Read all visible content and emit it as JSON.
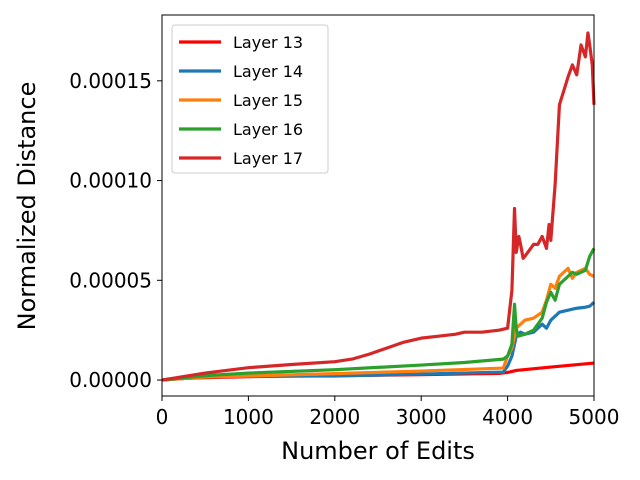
{
  "chart_data": {
    "type": "line",
    "xlabel": "Number of Edits",
    "ylabel": "Normalized Distance",
    "xlim": [
      0,
      5000
    ],
    "ylim": [
      -8e-06,
      0.000183
    ],
    "x_ticks": [
      0,
      1000,
      2000,
      3000,
      4000,
      5000
    ],
    "x_tick_labels": [
      "0",
      "1000",
      "2000",
      "3000",
      "4000",
      "5000"
    ],
    "y_ticks": [
      0,
      5e-05,
      0.0001,
      0.00015
    ],
    "y_tick_labels": [
      "0.00000",
      "0.00005",
      "0.00010",
      "0.00015"
    ],
    "grid": false,
    "legend_position": "top-left",
    "series": [
      {
        "name": "Layer 13",
        "color": "#ff0000",
        "x": [
          0,
          100,
          500,
          1000,
          2000,
          3000,
          3900,
          4000,
          4100,
          4500,
          5000
        ],
        "y": [
          0,
          6e-07,
          1.2e-06,
          1.7e-06,
          2.2e-06,
          2.7e-06,
          3.3e-06,
          3.8e-06,
          4.8e-06,
          6.5e-06,
          8.5e-06
        ]
      },
      {
        "name": "Layer 14",
        "color": "#1f77b4",
        "x": [
          0,
          500,
          1000,
          2000,
          3000,
          3950,
          4000,
          4050,
          4100,
          4150,
          4200,
          4300,
          4350,
          4400,
          4450,
          4500,
          4600,
          4700,
          4800,
          4900,
          4950,
          5000
        ],
        "y": [
          0,
          1.5e-06,
          2e-06,
          2e-06,
          3e-06,
          4e-06,
          7e-06,
          1.2e-05,
          2.2e-05,
          2.4e-05,
          2.3e-05,
          2.4e-05,
          2.6e-05,
          2.8e-05,
          2.6e-05,
          3e-05,
          3.4e-05,
          3.5e-05,
          3.6e-05,
          3.65e-05,
          3.7e-05,
          3.9e-05
        ]
      },
      {
        "name": "Layer 15",
        "color": "#ff7f0e",
        "x": [
          0,
          500,
          1000,
          2000,
          3000,
          3950,
          4000,
          4050,
          4100,
          4150,
          4200,
          4300,
          4400,
          4450,
          4500,
          4550,
          4600,
          4700,
          4750,
          4800,
          4900,
          4950,
          5000
        ],
        "y": [
          0,
          1.5e-06,
          2e-06,
          3.2e-06,
          4.5e-06,
          6e-06,
          1.2e-05,
          1.6e-05,
          2.6e-05,
          2.8e-05,
          3e-05,
          3.1e-05,
          3.4e-05,
          4e-05,
          4.8e-05,
          4.6e-05,
          5.2e-05,
          5.6e-05,
          5.1e-05,
          5.4e-05,
          5.6e-05,
          5.3e-05,
          5.2e-05
        ]
      },
      {
        "name": "Layer 16",
        "color": "#2ca02c",
        "x": [
          0,
          500,
          1000,
          2000,
          3000,
          3500,
          3950,
          4000,
          4050,
          4080,
          4100,
          4120,
          4200,
          4300,
          4400,
          4450,
          4500,
          4550,
          4600,
          4700,
          4750,
          4800,
          4900,
          4950,
          5000
        ],
        "y": [
          0,
          2.2e-06,
          3.5e-06,
          5.2e-06,
          7.5e-06,
          8.8e-06,
          1.05e-05,
          1.2e-05,
          1.8e-05,
          3.8e-05,
          2.6e-05,
          2.2e-05,
          2.3e-05,
          2.5e-05,
          3.1e-05,
          3.9e-05,
          4.4e-05,
          4e-05,
          4.8e-05,
          5.2e-05,
          5.4e-05,
          5.3e-05,
          5.5e-05,
          6.2e-05,
          6.6e-05
        ]
      },
      {
        "name": "Layer 17",
        "color": "#d62728",
        "x": [
          0,
          500,
          1000,
          1500,
          2000,
          2200,
          2400,
          2600,
          2800,
          3000,
          3200,
          3400,
          3500,
          3700,
          3900,
          4000,
          4050,
          4080,
          4100,
          4130,
          4150,
          4180,
          4200,
          4250,
          4300,
          4350,
          4400,
          4450,
          4480,
          4500,
          4550,
          4600,
          4650,
          4700,
          4750,
          4800,
          4850,
          4900,
          4930,
          4950,
          4980,
          5000
        ],
        "y": [
          0,
          3.5e-06,
          6.2e-06,
          7.8e-06,
          9.2e-06,
          1.05e-05,
          1.3e-05,
          1.6e-05,
          1.9e-05,
          2.1e-05,
          2.2e-05,
          2.3e-05,
          2.4e-05,
          2.4e-05,
          2.5e-05,
          2.6e-05,
          4.5e-05,
          8.6e-05,
          6.4e-05,
          7.2e-05,
          6.8e-05,
          6.1e-05,
          6.2e-05,
          6.5e-05,
          6.8e-05,
          6.8e-05,
          7.2e-05,
          6.6e-05,
          7.8e-05,
          7e-05,
          9.8e-05,
          0.000138,
          0.000145,
          0.000152,
          0.000158,
          0.000153,
          0.000168,
          0.000162,
          0.000174,
          0.000168,
          0.000158,
          0.000138
        ]
      }
    ]
  }
}
